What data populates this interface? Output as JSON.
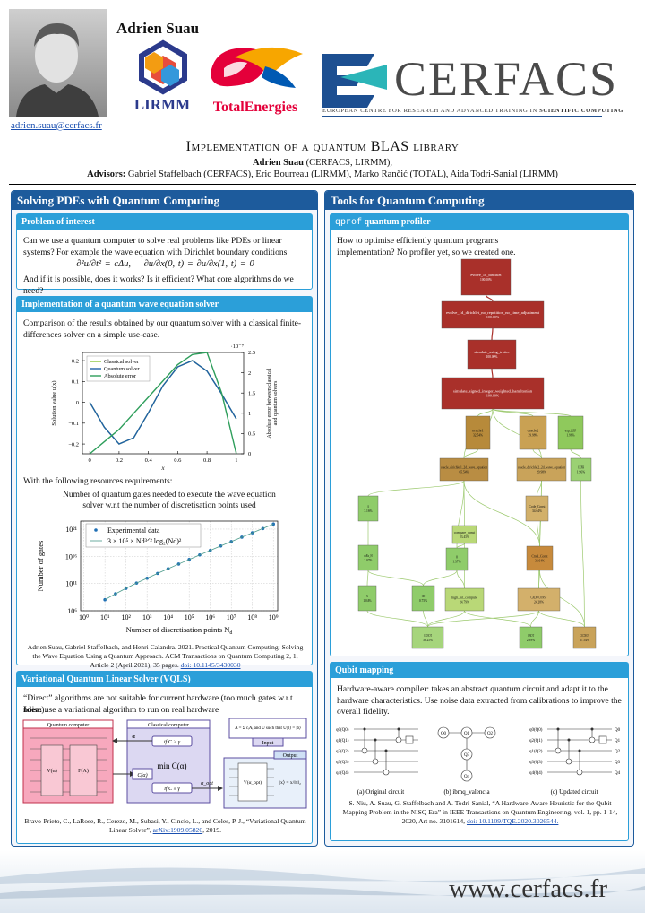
{
  "header": {
    "name": "Adrien Suau",
    "email": "adrien.suau@cerfacs.fr",
    "lirmm": "LIRMM",
    "total": "TotalEnergies",
    "cerfacs": "CERFACS",
    "cerfacs_tagline": "EUROPEAN CENTRE FOR RESEARCH AND ADVANCED TRAINING IN",
    "cerfacs_tagline_bold": "SCIENTIFIC COMPUTING"
  },
  "title": {
    "main": "Implementation of a quantum BLAS library",
    "author": "Adrien Suau",
    "author_affiliation": "(CERFACS, LIRMM),",
    "advisors_label": "Advisors:",
    "advisors": "Gabriel Staffelbach (CERFACS), Eric Bourreau (LIRMM), Marko Rančić (TOTAL), Aida Todri-Sanial (LIRMM)"
  },
  "left": {
    "heading": "Solving PDEs with Quantum Computing",
    "problem": {
      "heading": "Problem of interest",
      "text1": "Can we use a quantum computer to solve real problems like PDEs or linear systems? For example the wave equation with Dirichlet boundary conditions",
      "equation1": "∂²u/∂t² = cΔu,",
      "equation2": "∂u/∂x(0, t) = ∂u/∂x(1, t) = 0",
      "text2": "And if it is possible, does it works? Is it efficient? What core algorithms do we need?"
    },
    "wave": {
      "heading": "Implementation of a quantum wave equation solver",
      "intro": "Comparison of the results obtained by our quantum solver with a classical finite-differences solver on a simple use-case.",
      "resources": "With the following resources requirements:",
      "reference": "Adrien Suau, Gabriel Staffelbach, and Henri Calandra. 2021. Practical Quantum Computing: Solving the Wave Equation Using a Quantum Approach. ACM Transactions on Quantum Computing 2, 1, Article 2 (April 2021), 35 pages.",
      "doi": "doi: 10.1145/3430030"
    },
    "vqls": {
      "heading": "Variational Quantum Linear Solver (VQLS)",
      "text1": "“Direct” algorithms are not suitable for current hardware (too much gates w.r.t noise).",
      "idea_label": "Idea:",
      "idea": "use a variational algorithm to run on real hardware",
      "quantum_computer": "Quantum computer",
      "classical_computer": "Classical computer",
      "v_gate": "V(α)",
      "f_gate": "F(A)",
      "if_greater": "if C > γ",
      "minimize": "min C(α)",
      "if_less": "if C ≤ γ",
      "cost": "C(α)",
      "alpha": "α",
      "alpha_opt": "α_opt",
      "input": "Input",
      "input_text": "A = Σ cᵢAᵢ and U such that U|0⟩ = |b⟩",
      "output": "Output",
      "v_opt": "V(α_opt)",
      "x_state": "|x⟩ = x/‖x‖₂",
      "reference": "Bravo-Prieto, C., LaRose, R., Cerezo, M., Subasi, Y., Cincio, L., and Coles, P. J., “Variational Quantum Linear Solver”,",
      "arxiv": "arXiv:1909.05820",
      "year": ", 2019."
    }
  },
  "right": {
    "heading": "Tools for Quantum Computing",
    "profiler": {
      "heading_mono": "qprof",
      "heading": "quantum profiler",
      "intro": "How to optimise efficiently quantum programs implementation? No profiler yet, so we created one.",
      "nodes": [
        {
          "label": "evolve_1d_dirichlet",
          "percent": "100.00%",
          "color": "#a9302a"
        },
        {
          "label": "evolve_1d_dirichlet_no_repetition_no_time_adjustment",
          "percent": "100.00%",
          "color": "#a9302a"
        },
        {
          "label": "simulate_using_trotter",
          "percent": "100.00%",
          "color": "#a9302a"
        },
        {
          "label": "simulate_signed_integer_weighted_hamiltonian",
          "percent": "100.00%",
          "color": "#a9302a"
        },
        {
          "label": "oracle1",
          "percent": "32.54%",
          "color": "#b78a3a"
        },
        {
          "label": "oracle2",
          "percent": "29.98%",
          "color": "#c9a153"
        },
        {
          "label": "exp_ZZP",
          "percent": "1.96%",
          "color": "#8fc95c"
        },
        {
          "label": "oracle_dirichlet1_2d_wave_equation",
          "percent": "65.54%",
          "color": "#b98d43"
        },
        {
          "label": "oracle_dirichlet2_2d_wave_equation",
          "percent": "29.98%",
          "color": "#c9a35a"
        },
        {
          "label": "CCPH",
          "percent": "1.96%",
          "color": "#9bd173"
        },
        {
          "label": "A",
          "percent": "3.16%",
          "color": "#8fcc6a"
        },
        {
          "label": "Code_Const",
          "percent": "34.64%",
          "color": "#d2b06a"
        },
        {
          "label": "compare_const",
          "percent": "23.45%",
          "color": "#b9d877"
        },
        {
          "label": "Cmul_Const",
          "percent": "34.64%",
          "color": "#c78a3c"
        },
        {
          "label": "mRx_H",
          "percent": "2.07%",
          "color": "#8fcc6a"
        },
        {
          "label": "M",
          "percent": "1.37%",
          "color": "#8fcc6a"
        },
        {
          "label": "X",
          "percent": "1.04%",
          "color": "#8fcc6a"
        },
        {
          "label": "CH",
          "percent": "0.75%",
          "color": "#8fcc6a"
        },
        {
          "label": "high_bit_compute",
          "percent": "24.79%",
          "color": "#b9d877"
        },
        {
          "label": "CADD CONST",
          "percent": "24.28%",
          "color": "#d3b06b"
        },
        {
          "label": "CCNOT",
          "percent": "36.25%",
          "color": "#a6d57c"
        },
        {
          "label": "CNOT",
          "percent": "2.39%",
          "color": "#8fcc6a"
        },
        {
          "label": "CCCNOT",
          "percent": "37.54%",
          "color": "#c9a35a"
        }
      ]
    },
    "mapping": {
      "heading": "Qubit mapping",
      "text": "Hardware-aware compiler: takes an abstract quantum circuit and adapt it to the hardware characteristics. Use noise data extracted from calibrations to improve the overall fidelity.",
      "circuit_a": {
        "qubits": [
          "q0(Q0)",
          "q1(Q1)",
          "q2(Q2)",
          "q3(Q3)",
          "q4(Q4)"
        ],
        "caption": "(a) Original circuit"
      },
      "device": {
        "nodes": [
          "Q0",
          "Q1",
          "Q2",
          "Q3",
          "Q4"
        ],
        "caption": "(b) ibmq_valencia"
      },
      "circuit_c": {
        "qubits": [
          "q0(Q0)",
          "q2(Q1)",
          "q1(Q2)",
          "q3(Q3)",
          "q4(Q4)"
        ],
        "outputs": [
          "Q0",
          "Q1",
          "Q2",
          "Q3",
          "Q4"
        ],
        "caption": "(c) Updated circuit"
      },
      "reference": "S. Niu, A. Suau, G. Staffelbach and A. Todri-Sanial, “A Hardware-Aware Heuristic for the Qubit Mapping Problem in the NISQ Era” in IEEE Transactions on Quantum Engineering, vol. 1, pp. 1-14, 2020, Art no. 3101614,",
      "doi": "doi: 10.1109/TQE.2020.3026544."
    }
  },
  "footer": {
    "url": "www.cerfacs.fr"
  },
  "chart_data": [
    {
      "type": "line",
      "x_label": "x",
      "y_label": "Solution value u(x)",
      "y2_label": [
        "Absolute error between classical",
        "and quantum solvers"
      ],
      "y2_exponent": "·10⁻⁷",
      "x": [
        0,
        0.1,
        0.2,
        0.3,
        0.4,
        0.5,
        0.6,
        0.7,
        0.8,
        0.9,
        1
      ],
      "series": [
        {
          "name": "Classical solver",
          "color": "#8cc63f",
          "values": [
            0,
            -0.12,
            -0.2,
            -0.17,
            -0.05,
            0.08,
            0.17,
            0.2,
            0.15,
            0.04,
            -0.08
          ]
        },
        {
          "name": "Quantum solver",
          "color": "#1f5fa8",
          "values": [
            0,
            -0.12,
            -0.2,
            -0.17,
            -0.05,
            0.08,
            0.17,
            0.2,
            0.15,
            0.04,
            -0.08
          ]
        },
        {
          "name": "Absolute error",
          "color": "#2e9e5b",
          "axis": "y2",
          "values": [
            0,
            0.3,
            0.6,
            1.0,
            1.4,
            1.8,
            2.2,
            2.45,
            2.5,
            1.5,
            0
          ]
        }
      ],
      "xlim": [
        -0.05,
        1.05
      ],
      "xticks": [
        0,
        0.2,
        0.4,
        0.6,
        0.8,
        1
      ],
      "ylim": [
        -0.247,
        0.239
      ],
      "yticks": [
        {
          "value": -0.2,
          "label": "−0.2"
        },
        {
          "value": -0.1,
          "label": "−0.1"
        },
        0,
        0.1,
        0.2
      ],
      "y2lim": [
        0,
        2.5
      ],
      "y2ticks": [
        0,
        0.5,
        1,
        1.5,
        2,
        2.5
      ],
      "legend": "upper-left"
    },
    {
      "type": "scatter",
      "title": "Number of quantum gates needed to execute the wave equation solver w.r.t the number of discretisation points used",
      "x_label": "Number of discretisation points N",
      "x_label_sub": "d",
      "y_label": "Number of gates",
      "log_x": true,
      "log_y": true,
      "grid": true,
      "legend": "upper-left",
      "x": [
        10,
        31.6,
        100,
        316,
        1000,
        3162,
        10000,
        31623,
        100000,
        316228,
        1000000,
        3162278,
        10000000,
        31622777,
        100000000,
        316227766,
        1000000000
      ],
      "series": [
        {
          "name": "Experimental data",
          "color": "#1f6fb5",
          "values": [
            105000000.0,
            1300000000.0,
            13000000000.0,
            120000000000.0,
            940000000000.0,
            7200000000000.0,
            53000000000000.0,
            380000000000000.0,
            2600000000000000.0,
            1.8e+16,
            1.2e+17,
            7.9e+17,
            5.1e+18,
            3.3e+19,
            2.1e+20,
            1.3e+21,
            8.5e+21
          ]
        },
        {
          "name": "3 × 10⁵ × Nd³ᐟ² log₂(Nd)²",
          "color": "#4a9a8a",
          "values": [
            105000000.0,
            1300000000.0,
            13000000000.0,
            120000000000.0,
            940000000000.0,
            7200000000000.0,
            53000000000000.0,
            380000000000000.0,
            2600000000000000.0,
            1.8e+16,
            1.2e+17,
            7.9e+17,
            5.1e+18,
            3.3e+19,
            2.1e+20,
            1.3e+21,
            8.5e+21
          ]
        }
      ],
      "xlim": [
        0.7,
        1600000000.0
      ],
      "xticks": [
        {
          "value": 1,
          "label": "10⁰"
        },
        {
          "value": 10,
          "label": "10¹"
        },
        {
          "value": 100,
          "label": "10²"
        },
        {
          "value": 1000,
          "label": "10³"
        },
        {
          "value": 10000,
          "label": "10⁴"
        },
        {
          "value": 100000,
          "label": "10⁵"
        },
        {
          "value": 1000000,
          "label": "10⁶"
        },
        {
          "value": 10000000,
          "label": "10⁷"
        },
        {
          "value": 100000000,
          "label": "10⁸"
        },
        {
          "value": 1000000000,
          "label": "10⁹"
        }
      ],
      "ylim": [
        1000000.0,
        3e+22
      ],
      "yticks": [
        {
          "value": 1000000.0,
          "label": "10⁶"
        },
        {
          "value": 100000000000.0,
          "label": "10¹¹"
        },
        {
          "value": 1e+16,
          "label": "10¹⁶"
        },
        {
          "value": 1e+21,
          "label": "10²¹"
        }
      ]
    }
  ]
}
